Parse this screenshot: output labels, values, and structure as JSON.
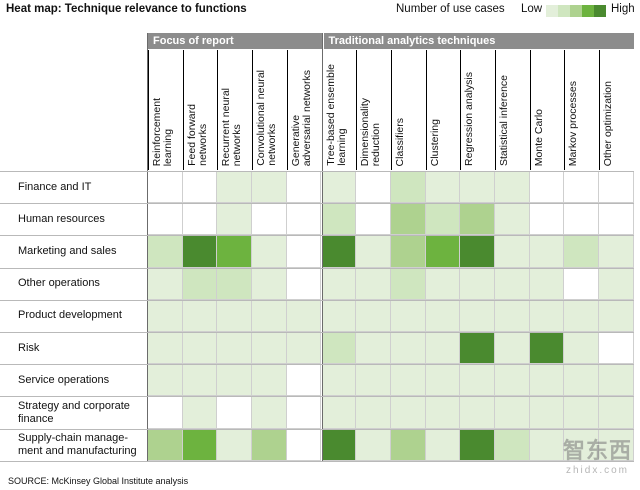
{
  "title": "Heat map: Technique relevance to functions",
  "legend": {
    "label": "Number of use cases",
    "low": "Low",
    "high": "High",
    "colors": [
      "#e3efda",
      "#cfe6bf",
      "#aed28f",
      "#6db33f",
      "#4a8a2f"
    ]
  },
  "groups": [
    {
      "name": "Focus of report",
      "span": [
        0,
        5
      ]
    },
    {
      "name": "Traditional analytics techniques",
      "span": [
        5,
        14
      ]
    }
  ],
  "source": "SOURCE:  McKinsey Global Institute analysis",
  "watermark": "智东西",
  "watermark_sub": "zhidx.com",
  "chart_data": {
    "type": "heatmap",
    "title": "Heat map: Technique relevance to functions",
    "color_scale": "Number of use cases (0 = none, 1 = Low ... 5 = High)",
    "columns": [
      "Reinforcement\nlearning",
      "Feed forward\nnetworks",
      "Recurrent neural\nnetworks",
      "Convolutional neural\nnetworks",
      "Generative\nadversarial networks",
      "Tree-based ensemble\nlearning",
      "Dimensionality\nreduction",
      "Classifiers",
      "Clustering",
      "Regression analysis",
      "Statistical inference",
      "Monte Carlo",
      "Markov processes",
      "Other optimization"
    ],
    "rows": [
      "Finance and IT",
      "Human resources",
      "Marketing and sales",
      "Other operations",
      "Product development",
      "Risk",
      "Service operations",
      "Strategy and corporate\nfinance",
      "Supply-chain manage-\nment and manufacturing"
    ],
    "values": [
      [
        0,
        0,
        1,
        1,
        0,
        1,
        0,
        2,
        1,
        1,
        1,
        0,
        0,
        0
      ],
      [
        0,
        0,
        1,
        0,
        0,
        2,
        0,
        3,
        2,
        3,
        1,
        0,
        0,
        0
      ],
      [
        2,
        5,
        4,
        1,
        0,
        5,
        1,
        3,
        4,
        5,
        1,
        1,
        2,
        1
      ],
      [
        1,
        2,
        2,
        1,
        0,
        1,
        1,
        2,
        1,
        1,
        1,
        1,
        0,
        1
      ],
      [
        1,
        1,
        1,
        1,
        1,
        1,
        1,
        1,
        1,
        1,
        1,
        1,
        1,
        1
      ],
      [
        1,
        1,
        1,
        1,
        1,
        2,
        1,
        1,
        1,
        5,
        1,
        5,
        1,
        0
      ],
      [
        1,
        1,
        1,
        1,
        0,
        1,
        1,
        1,
        1,
        1,
        1,
        1,
        1,
        1
      ],
      [
        0,
        1,
        0,
        1,
        0,
        1,
        1,
        1,
        1,
        1,
        1,
        1,
        1,
        1
      ],
      [
        3,
        4,
        1,
        3,
        0,
        5,
        1,
        3,
        1,
        5,
        2,
        1,
        1,
        1
      ]
    ]
  }
}
